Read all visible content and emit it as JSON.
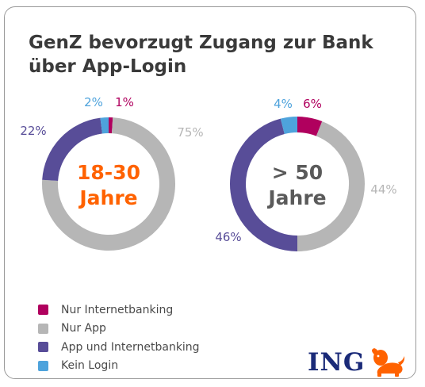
{
  "title": "GenZ bevorzugt Zugang zur Bank über App-Login",
  "brand": "ING",
  "colors": {
    "nur_internetbanking": "#b0005e",
    "nur_app": "#b6b6b6",
    "app_und_internetbanking": "#584d98",
    "kein_login": "#4ea3dc",
    "center_young": "#ff6200",
    "center_old": "#5a5a5a",
    "brand": "#1a2a78",
    "lion": "#ff6200"
  },
  "legend": [
    {
      "label": "Nur Internetbanking",
      "color": "#b0005e"
    },
    {
      "label": "Nur App",
      "color": "#b6b6b6"
    },
    {
      "label": "App und Internetbanking",
      "color": "#584d98"
    },
    {
      "label": "Kein Login",
      "color": "#4ea3dc"
    }
  ],
  "chart_data": [
    {
      "type": "pie",
      "center_label": [
        "18-30",
        "Jahre"
      ],
      "center_color": "#ff6200",
      "slices": [
        {
          "category": "Nur Internetbanking",
          "value": 1,
          "label": "1%",
          "color": "#b0005e"
        },
        {
          "category": "Nur App",
          "value": 75,
          "label": "75%",
          "color": "#b6b6b6"
        },
        {
          "category": "App und Internetbanking",
          "value": 22,
          "label": "22%",
          "color": "#584d98"
        },
        {
          "category": "Kein Login",
          "value": 2,
          "label": "2%",
          "color": "#4ea3dc"
        }
      ]
    },
    {
      "type": "pie",
      "center_label": [
        "> 50",
        "Jahre"
      ],
      "center_color": "#5a5a5a",
      "slices": [
        {
          "category": "Nur Internetbanking",
          "value": 6,
          "label": "6%",
          "color": "#b0005e"
        },
        {
          "category": "Nur App",
          "value": 44,
          "label": "44%",
          "color": "#b6b6b6"
        },
        {
          "category": "App und Internetbanking",
          "value": 46,
          "label": "46%",
          "color": "#584d98"
        },
        {
          "category": "Kein Login",
          "value": 4,
          "label": "4%",
          "color": "#4ea3dc"
        }
      ]
    }
  ]
}
